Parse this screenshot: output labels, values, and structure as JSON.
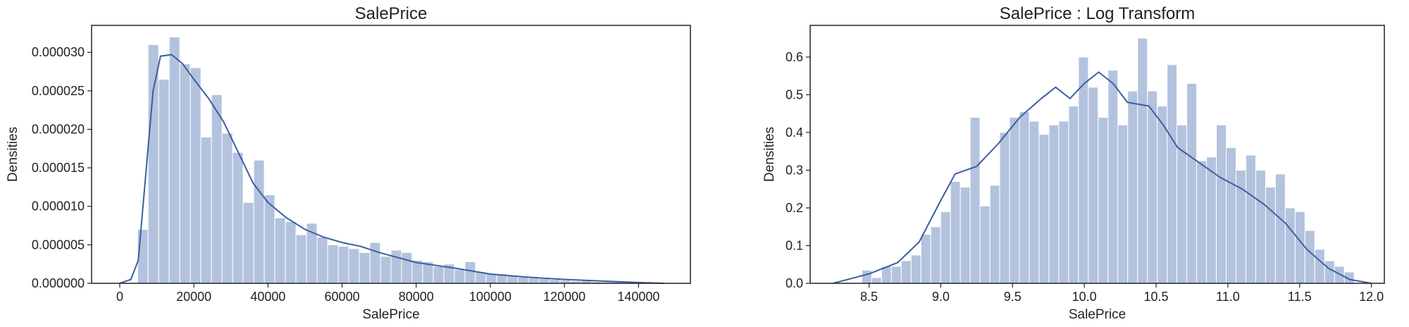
{
  "chart_data": [
    {
      "type": "histogram",
      "title": "SalePrice",
      "xlabel": "SalePrice",
      "ylabel": "Densities",
      "bins": [
        4800,
        7650,
        10500,
        13350,
        16200,
        19050,
        21900,
        24750,
        27600,
        30450,
        33300,
        36150,
        39000,
        41850,
        44700,
        47550,
        50400,
        53250,
        56100,
        58950,
        61800,
        64650,
        67500,
        70350,
        73200,
        76050,
        78900,
        81750,
        84600,
        87450,
        90300,
        93150,
        96000,
        98850,
        101700,
        104550,
        107400,
        110250,
        113100,
        115950,
        118800,
        121650,
        124500,
        127350,
        130200,
        133050,
        135900,
        138750,
        141600,
        144450,
        147300
      ],
      "values": [
        7e-06,
        3.1e-05,
        2.65e-05,
        3.2e-05,
        2.85e-05,
        2.8e-05,
        1.9e-05,
        2.45e-05,
        1.95e-05,
        1.7e-05,
        1.05e-05,
        1.6e-05,
        1.15e-05,
        8.5e-06,
        8e-06,
        6.3e-06,
        7.8e-06,
        6e-06,
        5e-06,
        4.8e-06,
        4.5e-06,
        4e-06,
        5.3e-06,
        3.5e-06,
        4.3e-06,
        4e-06,
        3e-06,
        2.8e-06,
        2.2e-06,
        2.5e-06,
        1.8e-06,
        2.8e-06,
        1.5e-06,
        1.3e-06,
        1.2e-06,
        1e-06,
        8e-07,
        7e-07,
        6e-07,
        5e-07,
        4e-07,
        3e-07,
        4e-07,
        2e-07,
        2e-07,
        2e-07,
        1e-07,
        1e-07,
        1e-07,
        1e-07
      ],
      "color": "#b3c3de",
      "kde": {
        "color": "#3a5f9f",
        "x": [
          0,
          3000,
          5000,
          7000,
          9000,
          11000,
          14000,
          17000,
          20000,
          24000,
          28000,
          32000,
          36000,
          40000,
          45000,
          50000,
          55000,
          60000,
          65000,
          70000,
          80000,
          90000,
          100000,
          110000,
          120000,
          130000,
          140000,
          147000
        ],
        "values": [
          0,
          5e-07,
          3e-06,
          1.4e-05,
          2.5e-05,
          2.95e-05,
          2.97e-05,
          2.85e-05,
          2.65e-05,
          2.4e-05,
          2.1e-05,
          1.7e-05,
          1.3e-05,
          1.05e-05,
          8.5e-06,
          7e-06,
          6e-06,
          5.3e-06,
          4.8e-06,
          4e-06,
          2.7e-06,
          2e-06,
          1.2e-06,
          8e-07,
          5e-07,
          3e-07,
          1e-07,
          0
        ]
      },
      "xlim": [
        -7600,
        154000
      ],
      "ylim": [
        0,
        3.35e-05
      ],
      "xticks": [
        0,
        20000,
        40000,
        60000,
        80000,
        100000,
        120000,
        140000
      ],
      "yticks": [
        {
          "value": 0,
          "label": "0.000000"
        },
        {
          "value": 5e-06,
          "label": "0.000005"
        },
        {
          "value": 1e-05,
          "label": "0.000010"
        },
        {
          "value": 1.5e-05,
          "label": "0.000015"
        },
        {
          "value": 2e-05,
          "label": "0.000020"
        },
        {
          "value": 2.5e-05,
          "label": "0.000025"
        },
        {
          "value": 3e-05,
          "label": "0.000030"
        }
      ]
    },
    {
      "type": "histogram",
      "title": "SalePrice : Log Transform",
      "xlabel": "SalePrice",
      "ylabel": "Densities",
      "bins": [
        8.45,
        8.5186,
        8.5872,
        8.6558,
        8.7244,
        8.793,
        8.8616,
        8.9302,
        8.9988,
        9.0674,
        9.136,
        9.2046,
        9.2732,
        9.3418,
        9.4104,
        9.479,
        9.5476,
        9.6162,
        9.6848,
        9.7534,
        9.822,
        9.8906,
        9.9592,
        10.0278,
        10.0964,
        10.165,
        10.2336,
        10.3022,
        10.3708,
        10.4394,
        10.508,
        10.5766,
        10.6452,
        10.7138,
        10.7824,
        10.851,
        10.9196,
        10.9882,
        11.0568,
        11.1254,
        11.194,
        11.2626,
        11.3312,
        11.3998,
        11.4684,
        11.537,
        11.6056,
        11.6742,
        11.7428,
        11.8114,
        11.88
      ],
      "values": [
        0.035,
        0.015,
        0.045,
        0.045,
        0.06,
        0.075,
        0.13,
        0.15,
        0.19,
        0.27,
        0.255,
        0.44,
        0.205,
        0.26,
        0.4,
        0.44,
        0.455,
        0.43,
        0.395,
        0.42,
        0.43,
        0.47,
        0.6,
        0.52,
        0.44,
        0.565,
        0.42,
        0.51,
        0.65,
        0.51,
        0.47,
        0.58,
        0.42,
        0.53,
        0.325,
        0.335,
        0.42,
        0.36,
        0.3,
        0.34,
        0.3,
        0.255,
        0.29,
        0.2,
        0.19,
        0.14,
        0.09,
        0.06,
        0.045,
        0.03
      ],
      "color": "#b3c3de",
      "kde": {
        "color": "#3a5f9f",
        "x": [
          8.25,
          8.4,
          8.5,
          8.7,
          8.85,
          9.0,
          9.1,
          9.25,
          9.4,
          9.55,
          9.7,
          9.8,
          9.9,
          10.0,
          10.1,
          10.2,
          10.3,
          10.45,
          10.55,
          10.65,
          10.8,
          10.95,
          11.1,
          11.25,
          11.4,
          11.55,
          11.7,
          11.85,
          12.0
        ],
        "values": [
          0,
          0.015,
          0.025,
          0.055,
          0.11,
          0.22,
          0.29,
          0.31,
          0.37,
          0.44,
          0.49,
          0.52,
          0.49,
          0.53,
          0.56,
          0.53,
          0.48,
          0.47,
          0.42,
          0.36,
          0.32,
          0.28,
          0.25,
          0.21,
          0.16,
          0.09,
          0.04,
          0.01,
          0
        ]
      },
      "xlim": [
        8.09,
        12.09
      ],
      "ylim": [
        0,
        0.684
      ],
      "xticks": [
        8.5,
        {
          "value": 9,
          "label": "9.0"
        },
        9.5,
        {
          "value": 10,
          "label": "10.0"
        },
        10.5,
        {
          "value": 11,
          "label": "11.0"
        },
        11.5,
        {
          "value": 12,
          "label": "12.0"
        }
      ],
      "yticks": [
        {
          "value": 0,
          "label": "0.0"
        },
        0.1,
        0.2,
        0.3,
        0.4,
        0.5,
        0.6
      ]
    }
  ]
}
